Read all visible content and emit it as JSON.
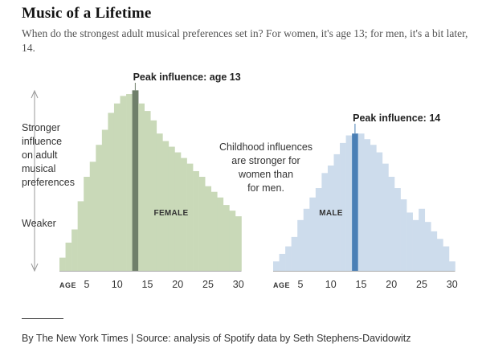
{
  "header": {
    "title": "Music of a Lifetime",
    "subtitle": "When do the strongest adult musical preferences set in? For women, it's age 13; for men, it's a bit later, 14."
  },
  "footer": {
    "credit": "By The New York Times | Source: analysis of Spotify data by Seth Stephens-Davidowitz"
  },
  "y_axis": {
    "stronger_lines": [
      "Stronger",
      "influence",
      "on adult",
      "musical",
      "preferences"
    ],
    "weaker_label": "Weaker"
  },
  "annotation": {
    "lines": [
      "Childhood influences",
      "are stronger for",
      "women than",
      "for men."
    ]
  },
  "colors": {
    "female_bar": "#c9d9b8",
    "female_peak": "#6f7f6a",
    "male_bar": "#cddcec",
    "male_peak": "#4a7fb5",
    "axis": "#aaaaaa"
  },
  "chart_data": [
    {
      "type": "bar",
      "panel": "female",
      "panel_label": "FEMALE",
      "x_axis_label": "AGE",
      "peak_label": "Peak influence: age 13",
      "peak_age": 13,
      "xlim": [
        1,
        31
      ],
      "xticks": [
        5,
        10,
        15,
        20,
        25,
        30
      ],
      "ylim": [
        0,
        100
      ],
      "y_scale": "relative (unlabeled)",
      "ages": [
        1,
        2,
        3,
        4,
        5,
        6,
        7,
        8,
        9,
        10,
        11,
        12,
        13,
        14,
        15,
        16,
        17,
        18,
        19,
        20,
        21,
        22,
        23,
        24,
        25,
        26,
        27,
        28,
        29,
        30
      ],
      "values": [
        7,
        15,
        22,
        37,
        50,
        58,
        67,
        75,
        84,
        89,
        93,
        94,
        96,
        89,
        85,
        80,
        73,
        69,
        66,
        63,
        60,
        57,
        53,
        50,
        45,
        42,
        39,
        35,
        32,
        29
      ]
    },
    {
      "type": "bar",
      "panel": "male",
      "panel_label": "MALE",
      "x_axis_label": "AGE",
      "peak_label": "Peak influence: 14",
      "peak_age": 14,
      "xlim": [
        1,
        31
      ],
      "xticks": [
        5,
        10,
        15,
        20,
        25,
        30
      ],
      "ylim": [
        0,
        100
      ],
      "y_scale": "relative (unlabeled)",
      "ages": [
        1,
        2,
        3,
        4,
        5,
        6,
        7,
        8,
        9,
        10,
        11,
        12,
        13,
        14,
        15,
        16,
        17,
        18,
        19,
        20,
        21,
        22,
        23,
        24,
        25,
        26,
        27,
        28,
        29,
        30
      ],
      "values": [
        5,
        9,
        13,
        18,
        27,
        33,
        39,
        44,
        52,
        56,
        62,
        68,
        72,
        73,
        73,
        70,
        67,
        63,
        57,
        50,
        44,
        38,
        31,
        27,
        33,
        26,
        21,
        17,
        13,
        5
      ]
    }
  ]
}
